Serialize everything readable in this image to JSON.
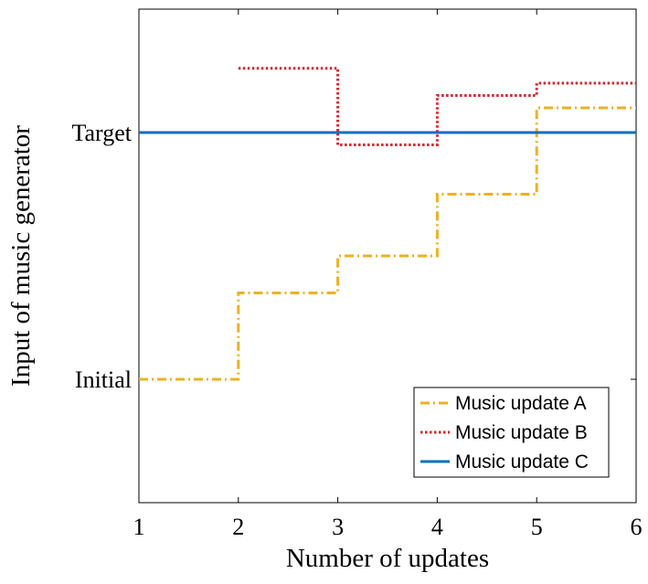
{
  "chart_data": {
    "type": "line",
    "title": "",
    "xlabel": "Number of updates",
    "ylabel": "Input of music generator",
    "xlim": [
      1,
      6
    ],
    "ylim": [
      -0.5,
      1.5
    ],
    "x_ticks": [
      {
        "value": 1,
        "label": "1"
      },
      {
        "value": 2,
        "label": "2"
      },
      {
        "value": 3,
        "label": "3"
      },
      {
        "value": 4,
        "label": "4"
      },
      {
        "value": 5,
        "label": "5"
      },
      {
        "value": 6,
        "label": "6"
      }
    ],
    "y_ticks": [
      {
        "value": 0,
        "label": "Initial"
      },
      {
        "value": 1,
        "label": "Target"
      }
    ],
    "grid": false,
    "legend_position": "bottom-right",
    "series": [
      {
        "name": "Music update A",
        "style": "step",
        "dash": "dash-dot",
        "color": "#EDB120",
        "x": [
          1,
          2,
          3,
          4,
          5,
          6
        ],
        "y": [
          0.0,
          0.35,
          0.5,
          0.75,
          1.1,
          1.1
        ]
      },
      {
        "name": "Music update B",
        "style": "step",
        "dash": "dotted",
        "color": "#D9232D",
        "x": [
          2,
          3,
          4,
          5,
          6
        ],
        "y": [
          1.26,
          0.95,
          1.15,
          1.2,
          1.2
        ]
      },
      {
        "name": "Music update C",
        "style": "line",
        "dash": "solid",
        "color": "#0072BD",
        "x": [
          1,
          6
        ],
        "y": [
          1.0,
          1.0
        ]
      }
    ]
  }
}
